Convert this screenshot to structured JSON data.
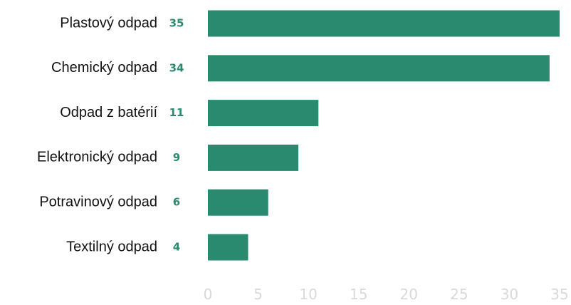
{
  "chart_data": {
    "type": "bar",
    "orientation": "horizontal",
    "categories": [
      "Plastový odpad",
      "Chemický odpad",
      "Odpad z batérií",
      "Elektronický odpad",
      "Potravinový odpad",
      "Textilný odpad"
    ],
    "values": [
      35,
      34,
      11,
      9,
      6,
      4
    ],
    "value_labels": [
      "35",
      "34",
      "11",
      "9",
      "6",
      "4"
    ],
    "x_ticks": [
      "0",
      "5",
      "10",
      "15",
      "20",
      "25",
      "30",
      "35"
    ],
    "xlim": [
      0,
      35
    ],
    "grid": false,
    "legend": "none",
    "bar_color": "#2a8a70",
    "value_label_color": "#2a8a70",
    "tick_color": "#d9d9d9"
  }
}
